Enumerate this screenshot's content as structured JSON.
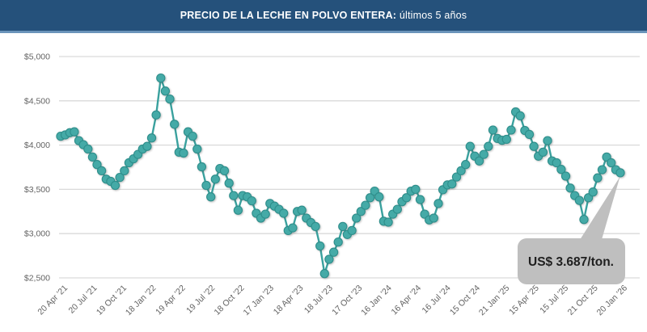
{
  "header": {
    "title_bold": "PRECIO DE LA LECHE EN POLVO ENTERA:",
    "title_regular": " últimos 5 años",
    "bg_color": "#25517b",
    "accent_color": "#6a94ba"
  },
  "callout": {
    "label": "US$ 3.687/ton.",
    "value": 3687,
    "bg_color": "#bfbfbf",
    "text_color": "#1f1f1f",
    "points_to_index": 123
  },
  "chart_data": {
    "type": "line",
    "title": "PRECIO DE LA LECHE EN POLVO ENTERA: últimos 5 años",
    "xlabel": "",
    "ylabel": "",
    "ylim": [
      2500,
      5000
    ],
    "y_ticks": [
      2500,
      3000,
      3500,
      4000,
      4500,
      5000
    ],
    "y_tick_labels": [
      "$2,500",
      "$3,000",
      "$3,500",
      "$4,000",
      "$4,500",
      "$5,000"
    ],
    "grid": "horizontal",
    "legend": "none",
    "x_tick_labels": [
      "20 Apr '21",
      "20 Jul '21",
      "19 Oct '21",
      "18 Jan '22",
      "19 Apr '22",
      "19 Jul '22",
      "18 Oct '22",
      "17 Jan '23",
      "18 Apr '23",
      "18 Jul '23",
      "17 Oct '23",
      "16 Jan '24",
      "16 Apr '24",
      "16 Jul '24",
      "15 Oct '24",
      "21 Jan '25",
      "15 Apr '25",
      "15 Jul '25",
      "21 Oct '25",
      "20 Jan '26"
    ],
    "values": [
      4100,
      4115,
      4140,
      4150,
      4050,
      4005,
      3955,
      3865,
      3780,
      3710,
      3615,
      3590,
      3545,
      3635,
      3710,
      3800,
      3845,
      3895,
      3955,
      3985,
      4080,
      4340,
      4757,
      4610,
      4520,
      4235,
      3920,
      3910,
      4150,
      4100,
      3955,
      3755,
      3545,
      3415,
      3615,
      3735,
      3710,
      3570,
      3430,
      3265,
      3430,
      3415,
      3370,
      3230,
      3175,
      3220,
      3340,
      3310,
      3275,
      3230,
      3035,
      3065,
      3250,
      3265,
      3175,
      3125,
      3080,
      2860,
      2548,
      2710,
      2790,
      2905,
      3080,
      2990,
      3035,
      3175,
      3250,
      3320,
      3405,
      3480,
      3415,
      3140,
      3130,
      3220,
      3275,
      3360,
      3405,
      3480,
      3500,
      3385,
      3220,
      3155,
      3175,
      3340,
      3495,
      3550,
      3560,
      3640,
      3710,
      3780,
      3985,
      3875,
      3820,
      3895,
      3985,
      4170,
      4075,
      4055,
      4065,
      4170,
      4375,
      4330,
      4165,
      4120,
      3985,
      3875,
      3920,
      4050,
      3820,
      3800,
      3725,
      3650,
      3515,
      3430,
      3375,
      3160,
      3405,
      3470,
      3630,
      3722,
      3865,
      3800,
      3722,
      3687
    ],
    "point_color": "#45aaa7",
    "point_stroke_color": "#2e8e8b",
    "line_color": "#3aa19e",
    "grid_color": "#d9d9d9",
    "axis_text_color": "#636363"
  }
}
